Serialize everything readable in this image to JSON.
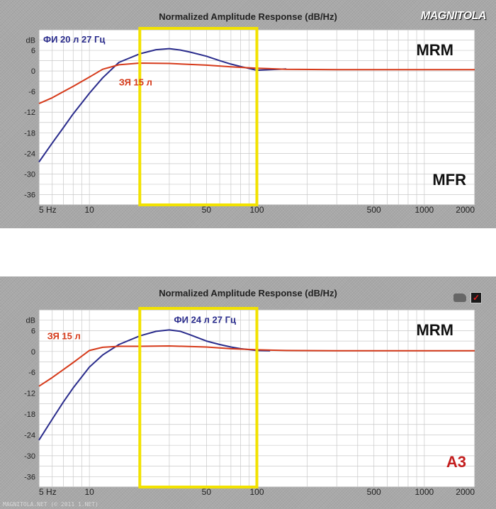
{
  "charts": [
    {
      "title": "Normalized Amplitude Response (dB/Hz)",
      "logo": "MAGNITOLA",
      "badge_top": "MRM",
      "badge_bottom": "MFR",
      "watermark": ""
    },
    {
      "title": "Normalized Amplitude Response (dB/Hz)",
      "logo": "",
      "badge_top": "MRM",
      "badge_bottom": "А3",
      "watermark": "MAGNITOLA.NET  (© 2011 1.NET)"
    }
  ],
  "chart_data": [
    {
      "type": "line",
      "title": "Normalized Amplitude Response (dB/Hz)",
      "x_scale": "log",
      "xlim": [
        5,
        2000
      ],
      "ylim": [
        -39,
        12
      ],
      "x_ticks": [
        {
          "value": 5,
          "label": "5 Hz"
        },
        {
          "value": 10,
          "label": "10"
        },
        {
          "value": 50,
          "label": "50"
        },
        {
          "value": 100,
          "label": "100"
        },
        {
          "value": 500,
          "label": "500"
        },
        {
          "value": 1000,
          "label": "1000"
        },
        {
          "value": 2000,
          "label": "2000"
        }
      ],
      "y_ticks": [
        {
          "value": 9,
          "label": "dB"
        },
        {
          "value": 6,
          "label": "6"
        },
        {
          "value": 0,
          "label": "0"
        },
        {
          "value": -6,
          "label": "-6"
        },
        {
          "value": -12,
          "label": "-12"
        },
        {
          "value": -18,
          "label": "-18"
        },
        {
          "value": -24,
          "label": "-24"
        },
        {
          "value": -30,
          "label": "-30"
        },
        {
          "value": -36,
          "label": "-36"
        }
      ],
      "grid": true,
      "highlight_range": [
        20,
        100
      ],
      "highlight_color": "#f2e200",
      "series": [
        {
          "name": "ФИ 20 л 27 Гц",
          "color": "#2a2c8c",
          "x": [
            5,
            6,
            7,
            8,
            10,
            12,
            15,
            20,
            25,
            30,
            35,
            40,
            50,
            60,
            70,
            80,
            100,
            120,
            150
          ],
          "y": [
            -26.5,
            -21,
            -16.5,
            -12.5,
            -6.5,
            -2,
            2.5,
            5,
            6.2,
            6.5,
            6.1,
            5.5,
            4.3,
            3,
            2,
            1.3,
            0.2,
            0.4,
            0.6
          ]
        },
        {
          "name": "ЗЯ 15 л",
          "color": "#d63a1a",
          "x": [
            5,
            6,
            7,
            8,
            10,
            12,
            15,
            20,
            30,
            50,
            70,
            100,
            150,
            300,
            700,
            1500,
            2000
          ],
          "y": [
            -9.5,
            -7.8,
            -6,
            -4.5,
            -1.8,
            0.5,
            1.8,
            2.3,
            2.2,
            1.7,
            1.2,
            0.8,
            0.5,
            0.4,
            0.4,
            0.4,
            0.4
          ]
        }
      ],
      "labels": [
        {
          "text": "ФИ 20 л 27 Гц",
          "color": "#2a2c8c",
          "x": 5.3,
          "y": 8.3
        },
        {
          "text": "ЗЯ 15 л",
          "color": "#d63a1a",
          "x": 15,
          "y": -4.2
        }
      ]
    },
    {
      "type": "line",
      "title": "Normalized Amplitude Response (dB/Hz)",
      "x_scale": "log",
      "xlim": [
        5,
        2000
      ],
      "ylim": [
        -39,
        12
      ],
      "x_ticks": [
        {
          "value": 5,
          "label": "5 Hz"
        },
        {
          "value": 10,
          "label": "10"
        },
        {
          "value": 50,
          "label": "50"
        },
        {
          "value": 100,
          "label": "100"
        },
        {
          "value": 500,
          "label": "500"
        },
        {
          "value": 1000,
          "label": "1000"
        },
        {
          "value": 2000,
          "label": "2000"
        }
      ],
      "y_ticks": [
        {
          "value": 9,
          "label": "dB"
        },
        {
          "value": 6,
          "label": "6"
        },
        {
          "value": 0,
          "label": "0"
        },
        {
          "value": -6,
          "label": "-6"
        },
        {
          "value": -12,
          "label": "-12"
        },
        {
          "value": -18,
          "label": "-18"
        },
        {
          "value": -24,
          "label": "-24"
        },
        {
          "value": -30,
          "label": "-30"
        },
        {
          "value": -36,
          "label": "-36"
        }
      ],
      "grid": true,
      "highlight_range": [
        20,
        100
      ],
      "highlight_color": "#f2e200",
      "series": [
        {
          "name": "ФИ 24 л 27 Гц",
          "color": "#2a2c8c",
          "x": [
            5,
            6,
            7,
            8,
            10,
            12,
            15,
            20,
            25,
            30,
            35,
            40,
            50,
            60,
            70,
            80,
            100,
            120
          ],
          "y": [
            -25.5,
            -19.5,
            -14.5,
            -10.5,
            -4.5,
            -1,
            2,
            4.5,
            5.8,
            6.2,
            5.8,
            4.8,
            3,
            2,
            1.3,
            0.8,
            0.3,
            0.2
          ]
        },
        {
          "name": "ЗЯ 15 л",
          "color": "#d63a1a",
          "x": [
            5,
            6,
            7,
            8,
            10,
            12,
            15,
            20,
            30,
            50,
            70,
            100,
            150,
            300,
            700,
            1500,
            2000
          ],
          "y": [
            -10,
            -7.5,
            -5.2,
            -3.2,
            0.3,
            1.2,
            1.5,
            1.5,
            1.6,
            1.3,
            0.8,
            0.5,
            0.3,
            0.2,
            0.2,
            0.2,
            0.2
          ]
        }
      ],
      "labels": [
        {
          "text": "ФИ 24 л 27 Гц",
          "color": "#2a2c8c",
          "x": 32,
          "y": 8.2
        },
        {
          "text": "ЗЯ 15 л",
          "color": "#d63a1a",
          "x": 5.6,
          "y": 3.5
        }
      ]
    }
  ]
}
